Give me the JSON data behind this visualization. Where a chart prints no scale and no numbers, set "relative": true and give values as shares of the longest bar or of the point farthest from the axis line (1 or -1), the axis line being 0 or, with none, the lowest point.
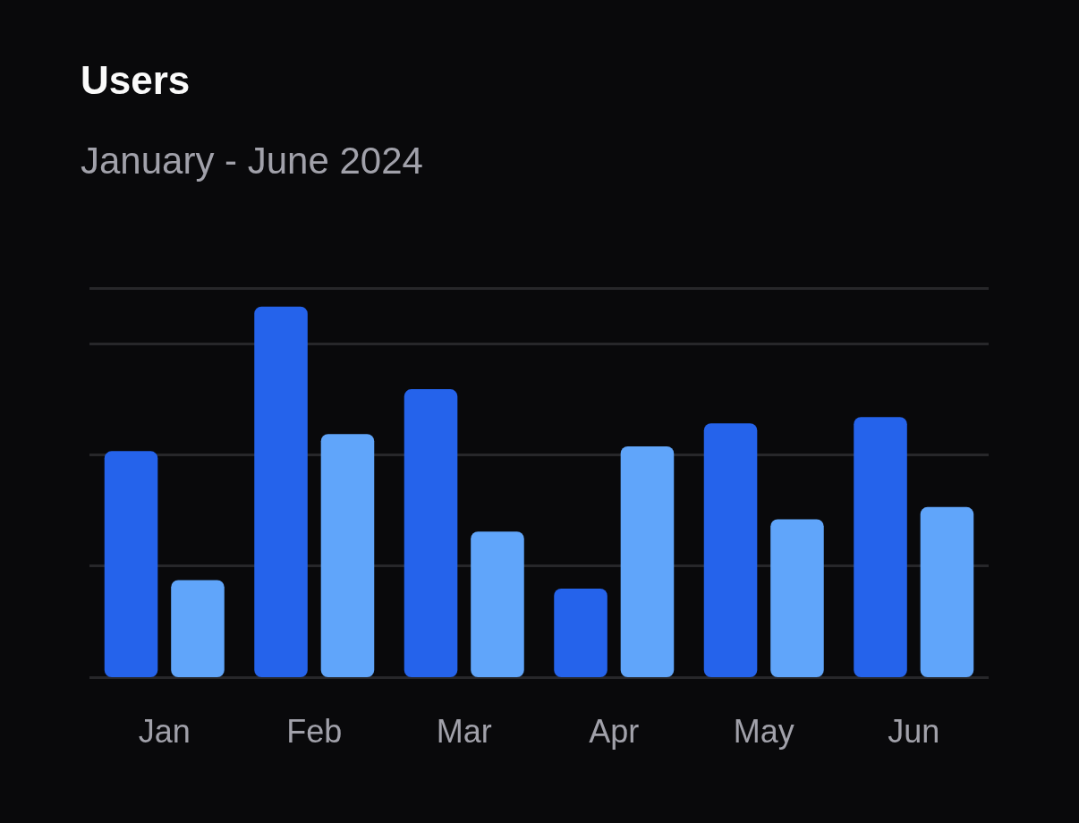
{
  "chart_data": {
    "type": "bar",
    "title": "Users",
    "subtitle": "January - June 2024",
    "relative": true,
    "grid": "y",
    "categories": [
      "Jan",
      "Feb",
      "Mar",
      "Apr",
      "May",
      "Jun"
    ],
    "series": [
      {
        "color": "#2563eb",
        "values": [
          0.61,
          1,
          0.777,
          0.239,
          0.685,
          0.702
        ]
      },
      {
        "color": "#60a5fa",
        "values": [
          0.262,
          0.656,
          0.393,
          0.623,
          0.426,
          0.459
        ]
      }
    ]
  }
}
